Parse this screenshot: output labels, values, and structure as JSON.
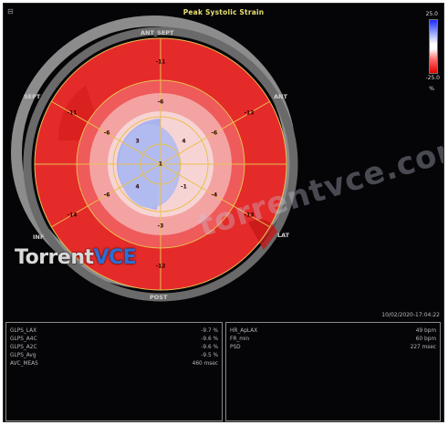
{
  "title": "Peak Systolic Strain",
  "corner_mark": "⊟",
  "scale": {
    "top": "25.0",
    "bottom": "-25.0",
    "unit": "%"
  },
  "timestamp": "10/02/2020-17:04:22",
  "segment_labels": {
    "ant_sept": "ANT_SEPT",
    "ant": "ANT",
    "sept": "SEPT",
    "lat": "LAT",
    "inf": "INF",
    "post": "POST"
  },
  "segment_values": {
    "basal": [
      "-11",
      "-13",
      "-13",
      "-12",
      "-14",
      "-11"
    ],
    "mid": [
      "-6",
      "-6",
      "-4",
      "-3",
      "-6",
      "-6"
    ],
    "apical": [
      "4",
      "-1",
      "4",
      "3"
    ],
    "apex": "1"
  },
  "left_panel": [
    {
      "label": "GLPS_LAX",
      "value": "-9.7 %"
    },
    {
      "label": "GLPS_A4C",
      "value": "-9.6 %"
    },
    {
      "label": "GLPS_A2C",
      "value": "-9.6 %"
    },
    {
      "label": "GLPS_Avg",
      "value": "-9.5 %"
    },
    {
      "label": "AVC_MEAS",
      "value": "460 msec"
    }
  ],
  "right_panel": [
    {
      "label": "HR_ApLAX",
      "value": "49 bpm"
    },
    {
      "label": "FR_min",
      "value": "60 bpm"
    },
    {
      "label": "PSD",
      "value": "227 msec"
    }
  ],
  "watermark": "torrentvce.com",
  "logo": {
    "part1": "Torrent",
    "part2": "VCE"
  },
  "colors": {
    "ring_gray": "#8c8c8c",
    "outer_red": "#e52a2a",
    "mid_red": "#ef5a5a",
    "pink": "#f4a3a3",
    "light_pink": "#f7d4d4",
    "blue": "#a9b3ee",
    "grid_yellow": "#e8c050"
  }
}
